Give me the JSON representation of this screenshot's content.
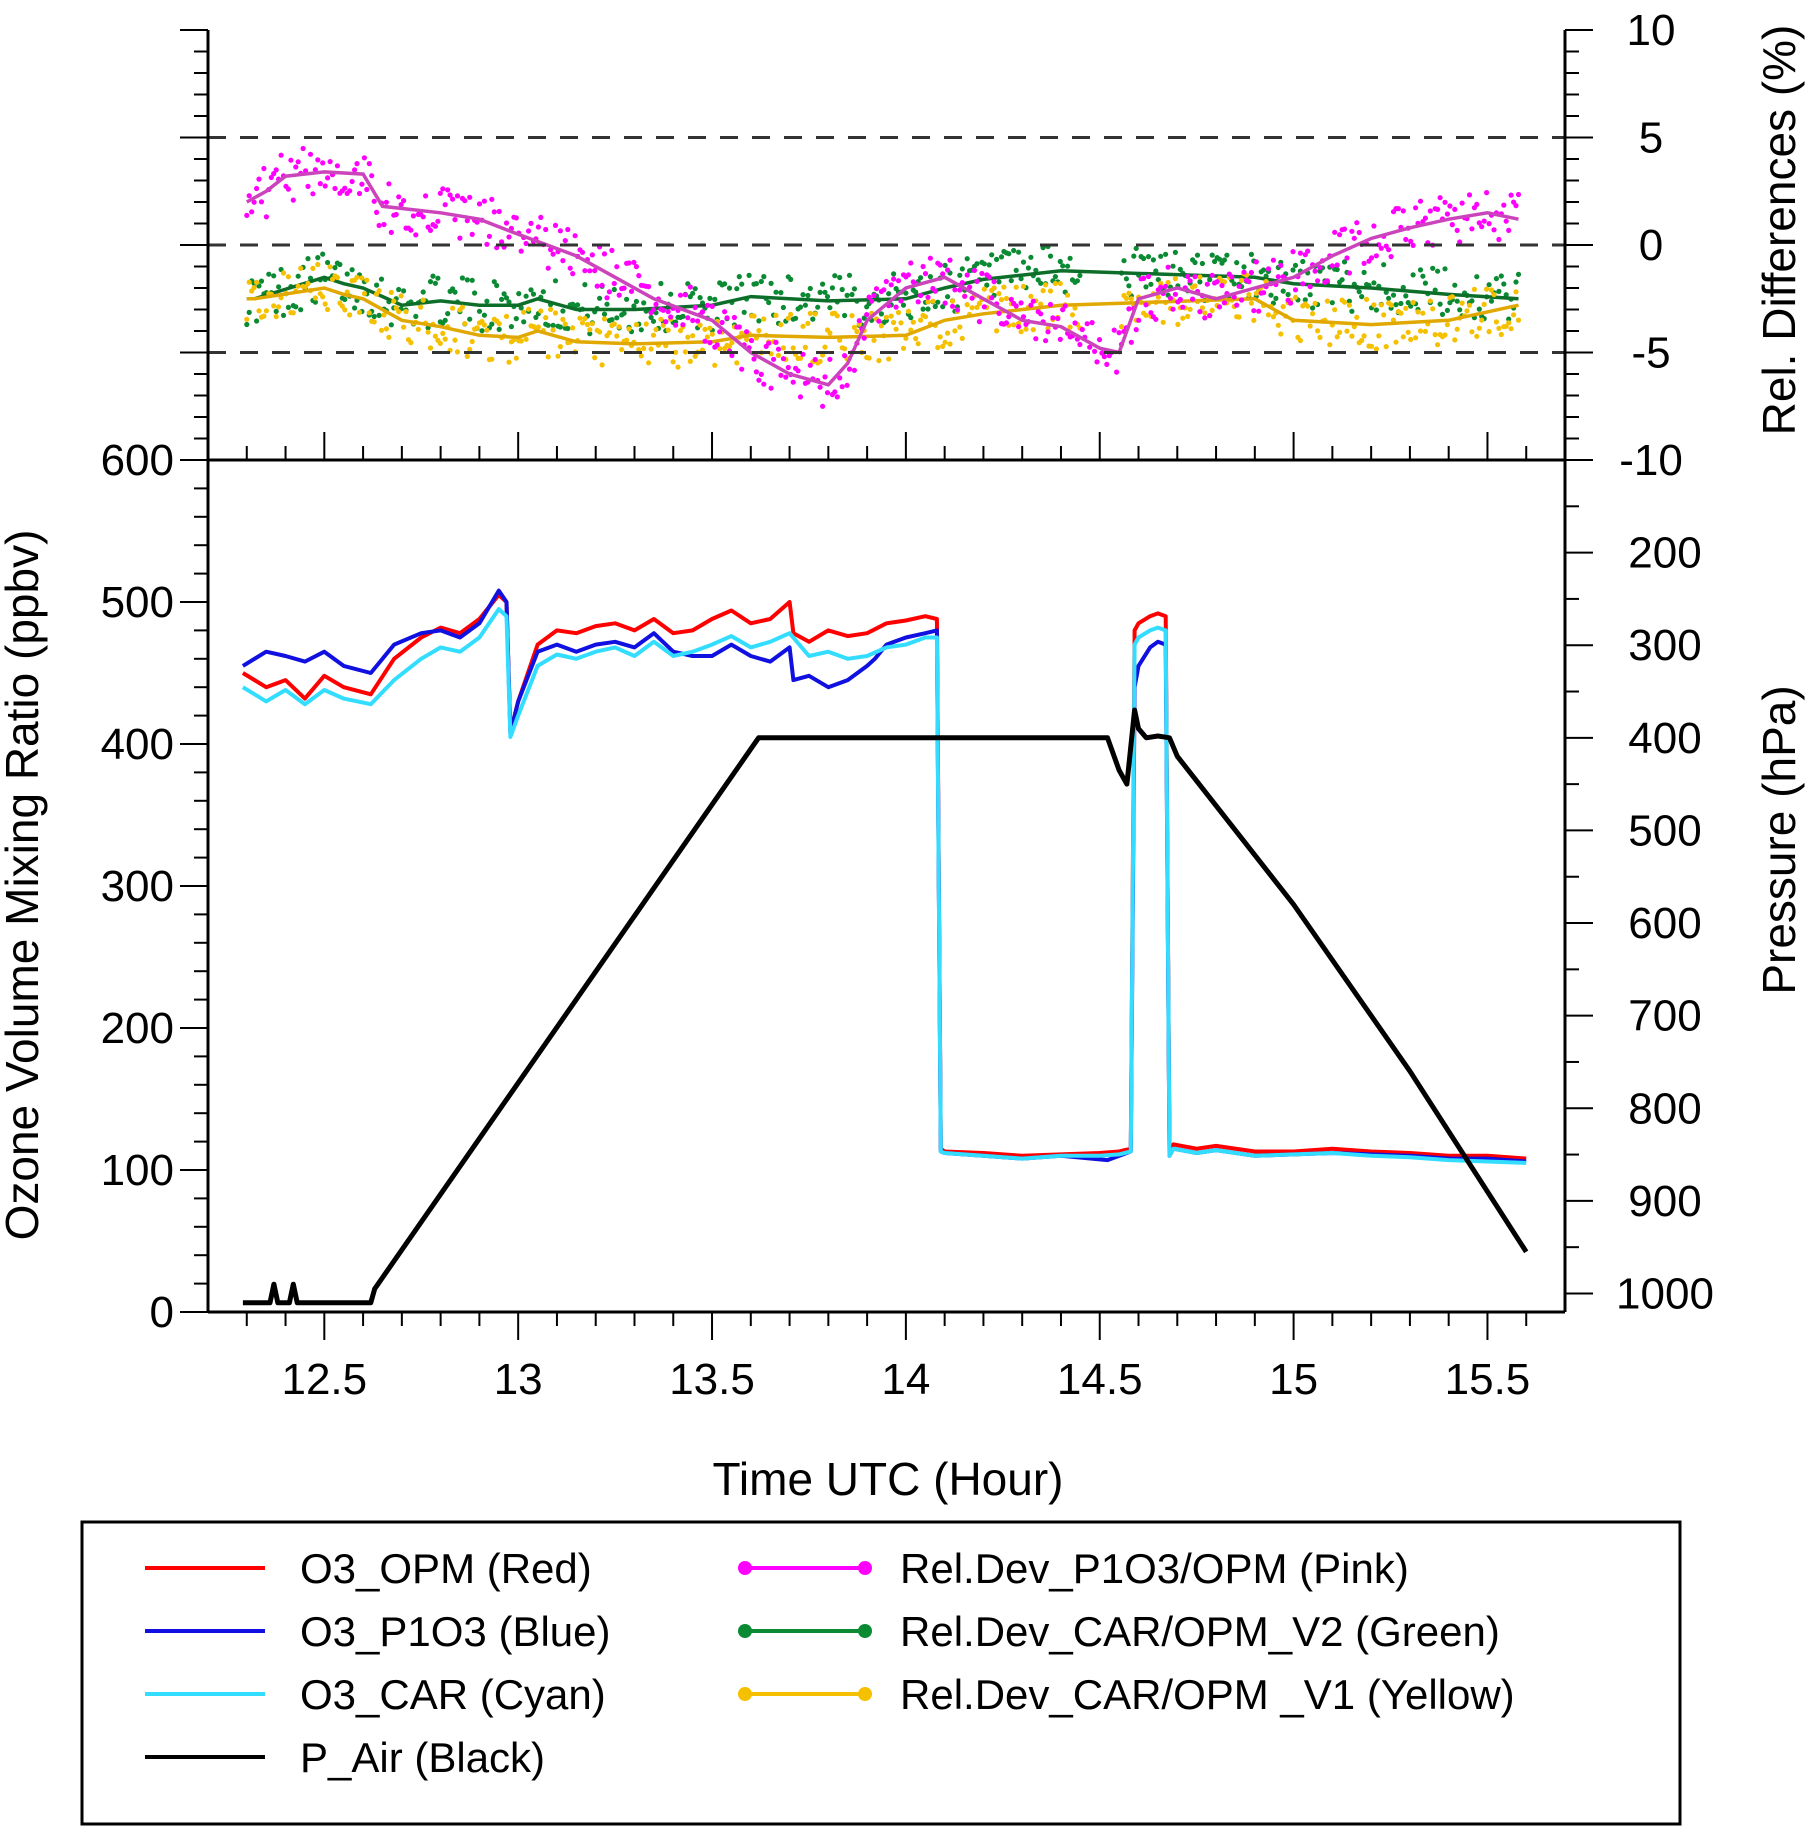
{
  "chart_data": {
    "type": "line",
    "top_panel": {
      "ylabel": "Rel. Differences (%)",
      "ylim": [
        -10,
        10
      ],
      "yticks": [
        -10,
        -5,
        0,
        5,
        10
      ],
      "reference_lines": [
        -5,
        0,
        5
      ],
      "series": [
        {
          "name": "Rel.Dev_P1O3/OPM (Pink)",
          "color": "#ff00ff",
          "marker": "dot",
          "x": [
            12.3,
            12.35,
            12.4,
            12.5,
            12.6,
            12.65,
            12.8,
            12.9,
            13.0,
            13.15,
            13.25,
            13.35,
            13.5,
            13.6,
            13.7,
            13.8,
            13.85,
            13.9,
            14.0,
            14.1,
            14.2,
            14.3,
            14.4,
            14.5,
            14.55,
            14.6,
            14.7,
            14.8,
            14.9,
            15.0,
            15.1,
            15.2,
            15.3,
            15.4,
            15.5,
            15.58
          ],
          "y": [
            2.0,
            2.5,
            3.2,
            3.4,
            3.3,
            1.8,
            1.5,
            1.2,
            0.5,
            -0.5,
            -1.5,
            -2.5,
            -3.5,
            -5.0,
            -6.0,
            -6.5,
            -5.5,
            -3.5,
            -2.0,
            -1.5,
            -2.5,
            -3.5,
            -3.8,
            -4.8,
            -5.0,
            -2.5,
            -2.0,
            -2.5,
            -2.0,
            -1.5,
            -0.5,
            0.3,
            0.8,
            1.2,
            1.5,
            1.2
          ]
        },
        {
          "name": "Rel.Dev_CAR/OPM_V2 (Green)",
          "color": "#0a8a32",
          "marker": "dot",
          "x": [
            12.3,
            12.32,
            12.5,
            12.55,
            12.6,
            12.7,
            12.8,
            12.9,
            13.0,
            13.05,
            13.15,
            13.3,
            13.5,
            13.6,
            13.8,
            14.0,
            14.1,
            14.2,
            14.3,
            14.4,
            14.9,
            15.0,
            15.2,
            15.4,
            15.58
          ],
          "y": [
            -2.5,
            -2.5,
            -1.5,
            -1.8,
            -2.0,
            -2.8,
            -2.6,
            -2.8,
            -2.8,
            -2.5,
            -3.0,
            -3.0,
            -2.8,
            -2.4,
            -2.6,
            -2.5,
            -2.0,
            -1.6,
            -1.4,
            -1.2,
            -1.5,
            -1.8,
            -2.0,
            -2.3,
            -2.5
          ]
        },
        {
          "name": "Rel.Dev_CAR/OPM _V1 (Yellow)",
          "color": "#f5c000",
          "marker": "dot",
          "x": [
            12.3,
            12.32,
            12.5,
            12.55,
            12.6,
            12.7,
            12.8,
            12.9,
            13.0,
            13.05,
            13.15,
            13.3,
            13.5,
            13.6,
            13.8,
            14.0,
            14.1,
            14.2,
            14.3,
            14.4,
            14.9,
            15.0,
            15.2,
            15.4,
            15.58
          ],
          "y": [
            -2.5,
            -2.5,
            -2.0,
            -2.3,
            -2.5,
            -3.5,
            -3.8,
            -4.2,
            -4.3,
            -4.0,
            -4.5,
            -4.6,
            -4.5,
            -4.2,
            -4.3,
            -4.2,
            -3.5,
            -3.2,
            -3.0,
            -2.8,
            -2.5,
            -3.5,
            -3.7,
            -3.5,
            -2.8
          ]
        }
      ]
    },
    "bottom_panel": {
      "xlabel": "Time UTC (Hour)",
      "xlim": [
        12.2,
        15.7
      ],
      "xticks": [
        12.5,
        13,
        13.5,
        14,
        14.5,
        15,
        15.5
      ],
      "ylabel": "Ozone Volume Mixing Ratio (ppbv)",
      "ylim": [
        0,
        600
      ],
      "yticks": [
        0,
        100,
        200,
        300,
        400,
        500,
        600
      ],
      "y2label": "Pressure (hPa)",
      "y2lim": [
        1020,
        100
      ],
      "y2ticks": [
        200,
        300,
        400,
        500,
        600,
        700,
        800,
        900,
        1000
      ],
      "series": [
        {
          "name": "O3_OPM (Red)",
          "color": "#ff0000",
          "axis": "left",
          "x": [
            12.29,
            12.35,
            12.4,
            12.45,
            12.5,
            12.55,
            12.62,
            12.68,
            12.75,
            12.8,
            12.85,
            12.9,
            12.95,
            12.97,
            12.98,
            13.0,
            13.05,
            13.1,
            13.15,
            13.2,
            13.25,
            13.3,
            13.35,
            13.4,
            13.45,
            13.5,
            13.55,
            13.6,
            13.65,
            13.7,
            13.71,
            13.75,
            13.8,
            13.85,
            13.9,
            13.95,
            14.0,
            14.05,
            14.08,
            14.09,
            14.1,
            14.2,
            14.3,
            14.4,
            14.5,
            14.55,
            14.58,
            14.59,
            14.6,
            14.63,
            14.65,
            14.67,
            14.68,
            14.69,
            14.75,
            14.8,
            14.9,
            15.0,
            15.1,
            15.2,
            15.3,
            15.4,
            15.5,
            15.6
          ],
          "y": [
            450,
            440,
            445,
            432,
            448,
            440,
            435,
            460,
            475,
            482,
            478,
            488,
            505,
            500,
            408,
            430,
            470,
            480,
            478,
            483,
            485,
            480,
            488,
            478,
            480,
            488,
            494,
            485,
            488,
            500,
            478,
            472,
            480,
            476,
            478,
            485,
            487,
            490,
            488,
            115,
            113,
            112,
            110,
            111,
            112,
            113,
            115,
            480,
            485,
            490,
            492,
            490,
            112,
            118,
            115,
            117,
            113,
            113,
            115,
            113,
            112,
            110,
            110,
            108
          ]
        },
        {
          "name": "O3_P1O3 (Blue)",
          "color": "#1010e0",
          "axis": "left",
          "x": [
            12.29,
            12.35,
            12.4,
            12.45,
            12.5,
            12.55,
            12.62,
            12.68,
            12.75,
            12.8,
            12.85,
            12.9,
            12.95,
            12.97,
            12.98,
            13.0,
            13.05,
            13.1,
            13.15,
            13.2,
            13.25,
            13.3,
            13.35,
            13.4,
            13.45,
            13.5,
            13.55,
            13.6,
            13.65,
            13.7,
            13.71,
            13.75,
            13.8,
            13.85,
            13.9,
            13.92,
            13.95,
            14.0,
            14.05,
            14.08,
            14.09,
            14.1,
            14.2,
            14.3,
            14.4,
            14.52,
            14.58,
            14.59,
            14.6,
            14.63,
            14.65,
            14.67,
            14.68,
            14.69,
            14.75,
            14.8,
            14.9,
            15.0,
            15.1,
            15.2,
            15.3,
            15.4,
            15.5,
            15.6
          ],
          "y": [
            455,
            465,
            462,
            458,
            465,
            455,
            450,
            470,
            478,
            480,
            475,
            485,
            508,
            500,
            408,
            430,
            465,
            470,
            465,
            470,
            472,
            468,
            478,
            465,
            462,
            462,
            470,
            462,
            458,
            468,
            445,
            448,
            440,
            445,
            455,
            460,
            470,
            475,
            478,
            480,
            113,
            112,
            110,
            108,
            110,
            107,
            113,
            440,
            455,
            468,
            472,
            470,
            110,
            115,
            112,
            114,
            110,
            111,
            112,
            111,
            110,
            108,
            108,
            106
          ]
        },
        {
          "name": "O3_CAR (Cyan)",
          "color": "#33ddff",
          "axis": "left",
          "x": [
            12.29,
            12.35,
            12.4,
            12.45,
            12.5,
            12.55,
            12.62,
            12.68,
            12.75,
            12.8,
            12.85,
            12.9,
            12.95,
            12.97,
            12.98,
            13.0,
            13.05,
            13.1,
            13.15,
            13.2,
            13.25,
            13.3,
            13.35,
            13.4,
            13.45,
            13.5,
            13.55,
            13.6,
            13.65,
            13.7,
            13.75,
            13.8,
            13.85,
            13.9,
            13.95,
            14.0,
            14.05,
            14.08,
            14.09,
            14.1,
            14.2,
            14.3,
            14.4,
            14.5,
            14.55,
            14.58,
            14.59,
            14.6,
            14.63,
            14.65,
            14.67,
            14.68,
            14.69,
            14.75,
            14.8,
            14.9,
            15.0,
            15.1,
            15.2,
            15.3,
            15.4,
            15.5,
            15.6
          ],
          "y": [
            440,
            430,
            438,
            428,
            438,
            432,
            428,
            445,
            460,
            468,
            465,
            475,
            495,
            490,
            405,
            420,
            455,
            463,
            460,
            465,
            468,
            462,
            472,
            462,
            465,
            470,
            476,
            468,
            472,
            478,
            462,
            465,
            460,
            462,
            468,
            470,
            475,
            475,
            113,
            112,
            110,
            108,
            110,
            110,
            111,
            113,
            470,
            475,
            480,
            482,
            480,
            110,
            115,
            112,
            114,
            110,
            111,
            112,
            110,
            109,
            107,
            106,
            105
          ]
        },
        {
          "name": "P_Air (Black)",
          "color": "#000000",
          "axis": "right",
          "x": [
            12.29,
            12.36,
            12.37,
            12.38,
            12.41,
            12.42,
            12.43,
            12.62,
            12.63,
            13.62,
            13.7,
            14.0,
            14.3,
            14.52,
            14.55,
            14.57,
            14.59,
            14.6,
            14.62,
            14.65,
            14.68,
            14.7,
            15.0,
            15.3,
            15.6
          ],
          "y": [
            1010,
            1010,
            990,
            1010,
            1010,
            990,
            1010,
            1010,
            995,
            400,
            400,
            400,
            400,
            400,
            435,
            450,
            370,
            390,
            400,
            398,
            400,
            420,
            580,
            760,
            955
          ]
        }
      ]
    },
    "legend": {
      "placement": "bottom",
      "entries": [
        {
          "label": "O3_OPM (Red)",
          "color": "#ff0000",
          "marker": false
        },
        {
          "label": "O3_P1O3 (Blue)",
          "color": "#1010e0",
          "marker": false
        },
        {
          "label": "O3_CAR (Cyan)",
          "color": "#33ddff",
          "marker": false
        },
        {
          "label": "P_Air (Black)",
          "color": "#000000",
          "marker": false
        },
        {
          "label": "Rel.Dev_P1O3/OPM (Pink)",
          "color": "#ff00ff",
          "marker": true
        },
        {
          "label": "Rel.Dev_CAR/OPM_V2 (Green)",
          "color": "#0a8a32",
          "marker": true
        },
        {
          "label": "Rel.Dev_CAR/OPM _V1 (Yellow)",
          "color": "#f5c000",
          "marker": true
        }
      ]
    }
  }
}
